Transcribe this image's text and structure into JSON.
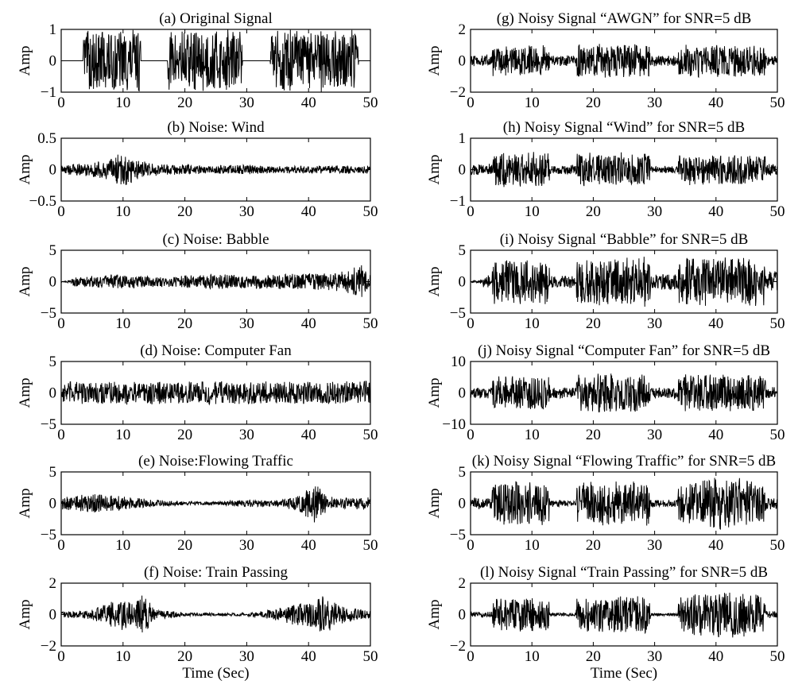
{
  "colors": {
    "signal": "#000000",
    "background": "#ffffff"
  },
  "chart_data": [
    {
      "id": "a",
      "type": "line",
      "title": "(a) Original Signal",
      "ylabel": "Amp",
      "xlabel": "",
      "xlim": [
        0,
        50
      ],
      "ylim": [
        -1,
        1
      ],
      "xticks": [
        "0",
        "10",
        "20",
        "30",
        "40",
        "50"
      ],
      "yticks": [
        "1",
        "0",
        "−1"
      ],
      "envelope": {
        "t": [
          0,
          3.5,
          3.6,
          12.8,
          12.9,
          17.2,
          17.3,
          29.2,
          29.3,
          33.8,
          33.9,
          48,
          48.1,
          50
        ],
        "amp": [
          0,
          0,
          1,
          1,
          0,
          0,
          1,
          1,
          0,
          0,
          1,
          1,
          0,
          0
        ]
      }
    },
    {
      "id": "b",
      "type": "line",
      "title": "(b) Noise: Wind",
      "ylabel": "Amp",
      "xlabel": "",
      "xlim": [
        0,
        50
      ],
      "ylim": [
        -0.5,
        0.5
      ],
      "xticks": [
        "0",
        "10",
        "20",
        "30",
        "40",
        "50"
      ],
      "yticks": [
        "0.5",
        "0",
        "−0.5"
      ],
      "envelope": {
        "t": [
          0,
          2,
          5,
          8,
          10,
          12,
          15,
          20,
          25,
          30,
          35,
          40,
          45,
          50
        ],
        "amp": [
          0.07,
          0.1,
          0.12,
          0.17,
          0.32,
          0.16,
          0.1,
          0.08,
          0.07,
          0.08,
          0.06,
          0.06,
          0.07,
          0.07
        ]
      }
    },
    {
      "id": "c",
      "type": "line",
      "title": "(c) Noise: Babble",
      "ylabel": "Amp",
      "xlabel": "",
      "xlim": [
        0,
        50
      ],
      "ylim": [
        -5,
        5
      ],
      "xticks": [
        "0",
        "10",
        "20",
        "30",
        "40",
        "50"
      ],
      "yticks": [
        "5",
        "0",
        "−5"
      ],
      "envelope": {
        "t": [
          0,
          1.5,
          2,
          5,
          10,
          15,
          20,
          25,
          30,
          35,
          40,
          45,
          49,
          50
        ],
        "amp": [
          0.1,
          0.2,
          0.8,
          0.9,
          1.2,
          0.9,
          1.0,
          1.3,
          1.2,
          1.2,
          1.4,
          1.5,
          2.8,
          1.5
        ]
      }
    },
    {
      "id": "d",
      "type": "line",
      "title": "(d) Noise: Computer Fan",
      "ylabel": "Amp",
      "xlabel": "",
      "xlim": [
        0,
        50
      ],
      "ylim": [
        -5,
        5
      ],
      "xticks": [
        "0",
        "10",
        "20",
        "30",
        "40",
        "50"
      ],
      "yticks": [
        "5",
        "0",
        "−5"
      ],
      "envelope": {
        "t": [
          0,
          10,
          20,
          30,
          40,
          50
        ],
        "amp": [
          1.8,
          1.9,
          1.8,
          1.9,
          1.8,
          1.9
        ]
      }
    },
    {
      "id": "e",
      "type": "line",
      "title": "(e) Noise:Flowing Traffic",
      "ylabel": "Amp",
      "xlabel": "",
      "xlim": [
        0,
        50
      ],
      "ylim": [
        -5,
        5
      ],
      "xticks": [
        "0",
        "10",
        "20",
        "30",
        "40",
        "50"
      ],
      "yticks": [
        "5",
        "0",
        "−5"
      ],
      "envelope": {
        "t": [
          0,
          5,
          10,
          15,
          20,
          25,
          30,
          35,
          38,
          40,
          41,
          43,
          45,
          50
        ],
        "amp": [
          1.0,
          1.6,
          1.1,
          0.6,
          0.3,
          0.3,
          0.6,
          0.5,
          1.2,
          2.5,
          3.5,
          1.2,
          0.9,
          1.0
        ]
      }
    },
    {
      "id": "f",
      "type": "line",
      "title": "(f) Noise: Train Passing",
      "ylabel": "Amp",
      "xlabel": "Time (Sec)",
      "xlim": [
        0,
        50
      ],
      "ylim": [
        -2,
        2
      ],
      "xticks": [
        "0",
        "10",
        "20",
        "30",
        "40",
        "50"
      ],
      "yticks": [
        "2",
        "0",
        "−2"
      ],
      "envelope": {
        "t": [
          0,
          3,
          5,
          8,
          10,
          12,
          13.5,
          15,
          20,
          30,
          33,
          36,
          40,
          43,
          45,
          50
        ],
        "amp": [
          0.2,
          0.25,
          0.4,
          0.8,
          1.1,
          0.9,
          1.4,
          0.35,
          0.12,
          0.1,
          0.25,
          0.5,
          0.9,
          1.4,
          0.6,
          0.25
        ]
      }
    },
    {
      "id": "g",
      "type": "line",
      "title": "(g) Noisy Signal “AWGN” for SNR=5 dB",
      "ylabel": "Amp",
      "xlabel": "",
      "xlim": [
        0,
        50
      ],
      "ylim": [
        -2,
        2
      ],
      "xticks": [
        "0",
        "10",
        "20",
        "30",
        "40",
        "50"
      ],
      "yticks": [
        "2",
        "0",
        "−2"
      ],
      "envelope": {
        "t": [
          0,
          3.5,
          3.6,
          12.8,
          12.9,
          17.2,
          17.3,
          29.2,
          29.3,
          33.8,
          33.9,
          48,
          48.1,
          50
        ],
        "amp": [
          0.35,
          0.35,
          1.0,
          1.0,
          0.35,
          0.35,
          1.1,
          1.1,
          0.35,
          0.35,
          1.05,
          1.05,
          0.35,
          0.35
        ]
      }
    },
    {
      "id": "h",
      "type": "line",
      "title": "(h) Noisy Signal “Wind” for SNR=5 dB",
      "ylabel": "Amp",
      "xlabel": "",
      "xlim": [
        0,
        50
      ],
      "ylim": [
        -1,
        1
      ],
      "xticks": [
        "0",
        "10",
        "20",
        "30",
        "40",
        "50"
      ],
      "yticks": [
        "1",
        "0",
        "−1"
      ],
      "envelope": {
        "t": [
          0,
          3.5,
          3.6,
          12.8,
          12.9,
          17.2,
          17.3,
          29.2,
          29.3,
          33.8,
          33.9,
          48,
          48.1,
          50
        ],
        "amp": [
          0.2,
          0.2,
          0.55,
          0.6,
          0.15,
          0.15,
          0.55,
          0.55,
          0.12,
          0.12,
          0.5,
          0.5,
          0.2,
          0.2
        ]
      }
    },
    {
      "id": "i",
      "type": "line",
      "title": "(i) Noisy Signal “Babble” for SNR=5 dB",
      "ylabel": "Amp",
      "xlabel": "",
      "xlim": [
        0,
        50
      ],
      "ylim": [
        -5,
        5
      ],
      "xticks": [
        "0",
        "10",
        "20",
        "30",
        "40",
        "50"
      ],
      "yticks": [
        "5",
        "0",
        "−5"
      ],
      "envelope": {
        "t": [
          0,
          1.5,
          2,
          3.5,
          3.6,
          12.8,
          12.9,
          17.2,
          17.3,
          29.2,
          29.3,
          33.8,
          33.9,
          48,
          48.1,
          50
        ],
        "amp": [
          0.1,
          0.3,
          1.0,
          1.0,
          3.6,
          3.6,
          1.0,
          1.0,
          4.0,
          4.0,
          1.3,
          1.3,
          4.0,
          4.0,
          1.8,
          1.8
        ]
      }
    },
    {
      "id": "j",
      "type": "line",
      "title": "(j) Noisy Signal “Computer Fan” for SNR=5 dB",
      "ylabel": "Amp",
      "xlabel": "",
      "xlim": [
        0,
        50
      ],
      "ylim": [
        -10,
        10
      ],
      "xticks": [
        "0",
        "10",
        "20",
        "30",
        "40",
        "50"
      ],
      "yticks": [
        "10",
        "0",
        "−10"
      ],
      "envelope": {
        "t": [
          0,
          3.5,
          3.6,
          12.8,
          12.9,
          17.2,
          17.3,
          29.2,
          29.3,
          33.8,
          33.9,
          48,
          48.1,
          50
        ],
        "amp": [
          1.8,
          1.8,
          5.5,
          5.5,
          1.8,
          1.8,
          6.2,
          6.2,
          1.8,
          1.8,
          6.0,
          6.0,
          1.9,
          1.9
        ]
      }
    },
    {
      "id": "k",
      "type": "line",
      "title": "(k) Noisy Signal “Flowing Traffic” for SNR=5 dB",
      "ylabel": "Amp",
      "xlabel": "",
      "xlim": [
        0,
        50
      ],
      "ylim": [
        -5,
        5
      ],
      "xticks": [
        "0",
        "10",
        "20",
        "30",
        "40",
        "50"
      ],
      "yticks": [
        "5",
        "0",
        "−5"
      ],
      "envelope": {
        "t": [
          0,
          3.5,
          3.6,
          12.8,
          12.9,
          17.2,
          17.3,
          29.2,
          29.3,
          33.8,
          33.9,
          42,
          48,
          48.1,
          50
        ],
        "amp": [
          1.0,
          1.0,
          3.6,
          3.6,
          0.6,
          0.4,
          3.6,
          3.6,
          0.6,
          0.6,
          3.6,
          4.4,
          3.5,
          1.0,
          1.0
        ]
      }
    },
    {
      "id": "l",
      "type": "line",
      "title": "(l) Noisy Signal “Train Passing” for SNR=5 dB",
      "ylabel": "Amp",
      "xlabel": "Time (Sec)",
      "xlim": [
        0,
        50
      ],
      "ylim": [
        -2,
        2
      ],
      "xticks": [
        "0",
        "10",
        "20",
        "30",
        "40",
        "50"
      ],
      "yticks": [
        "2",
        "0",
        "−2"
      ],
      "envelope": {
        "t": [
          0,
          3.5,
          3.6,
          12.8,
          12.9,
          17.2,
          17.3,
          29.2,
          29.3,
          33.8,
          33.9,
          43,
          48,
          48.1,
          50
        ],
        "amp": [
          0.2,
          0.2,
          1.05,
          1.15,
          0.1,
          0.1,
          1.2,
          1.2,
          0.1,
          0.1,
          1.2,
          1.6,
          1.2,
          0.25,
          0.25
        ]
      }
    }
  ]
}
